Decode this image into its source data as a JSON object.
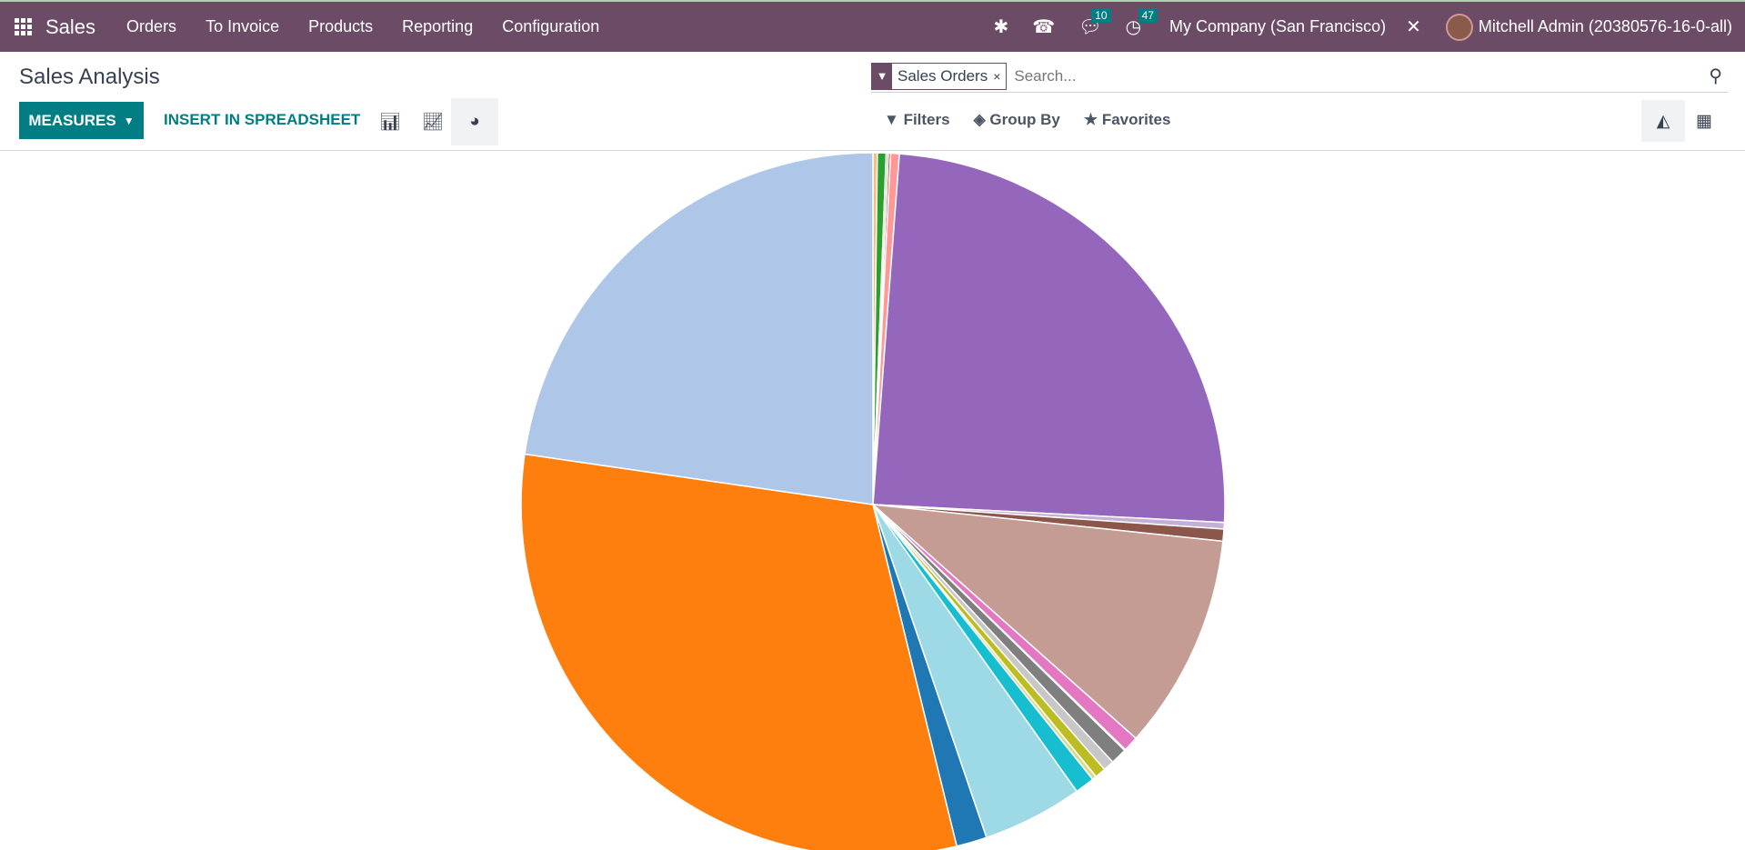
{
  "navbar": {
    "app": "Sales",
    "menus": [
      "Orders",
      "To Invoice",
      "Products",
      "Reporting",
      "Configuration"
    ],
    "messages_count": "10",
    "activities_count": "47",
    "company": "My Company (San Francisco)",
    "user": "Mitchell Admin (20380576-16-0-all)"
  },
  "page": {
    "title": "Sales Analysis"
  },
  "search": {
    "facet": "Sales Orders",
    "placeholder": "Search..."
  },
  "toolbar": {
    "measures": "MEASURES",
    "insert": "INSERT IN SPREADSHEET",
    "filters": "Filters",
    "group_by": "Group By",
    "favorites": "Favorites"
  },
  "chart_data": {
    "type": "pie",
    "title": "",
    "legend": "hidden",
    "unit": "percent (estimated)",
    "slices": [
      {
        "color": "#ffbb78",
        "value": 0.2
      },
      {
        "color": "#2ca02c",
        "value": 0.4
      },
      {
        "color": "#98df8a",
        "value": 0.1
      },
      {
        "color": "#d62728",
        "value": 0.1
      },
      {
        "color": "#ff9896",
        "value": 0.4
      },
      {
        "color": "#9467bd",
        "value": 24.6
      },
      {
        "color": "#c5b0d5",
        "value": 0.3
      },
      {
        "color": "#8c564b",
        "value": 0.55
      },
      {
        "color": "#c49c94",
        "value": 9.9
      },
      {
        "color": "#e377c2",
        "value": 0.7
      },
      {
        "color": "#f7b6d2",
        "value": 0.05
      },
      {
        "color": "#7f7f7f",
        "value": 0.75
      },
      {
        "color": "#c7c7c7",
        "value": 0.5
      },
      {
        "color": "#bcbd22",
        "value": 0.5
      },
      {
        "color": "#dbdb8d",
        "value": 0.2
      },
      {
        "color": "#17becf",
        "value": 0.9
      },
      {
        "color": "#9edae5",
        "value": 4.6
      },
      {
        "color": "#1f77b4",
        "value": 1.4
      },
      {
        "color": "#ff7f0e",
        "value": 31.1
      },
      {
        "color": "#aec7e8",
        "value": 22.7
      }
    ]
  }
}
